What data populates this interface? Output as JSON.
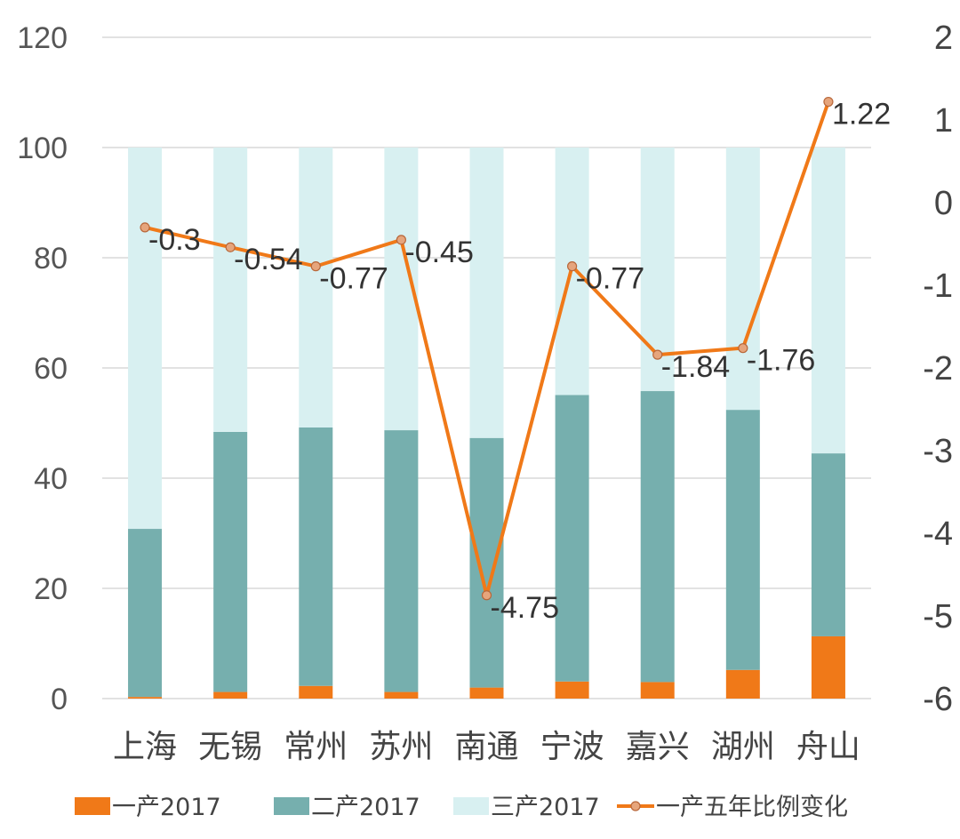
{
  "chart_data": {
    "type": "bar",
    "stacked": true,
    "categories": [
      "上海",
      "无锡",
      "常州",
      "苏州",
      "南通",
      "宁波",
      "嘉兴",
      "湖州",
      "舟山"
    ],
    "series": [
      {
        "name": "一产2017",
        "type": "bar",
        "axis": "left",
        "color": "#f07918",
        "values": [
          0.3,
          1.2,
          2.3,
          1.2,
          2.0,
          3.1,
          3.0,
          5.2,
          11.3
        ]
      },
      {
        "name": "二产2017",
        "type": "bar",
        "axis": "left",
        "color": "#76afae",
        "values": [
          30.5,
          47.2,
          46.9,
          47.5,
          45.3,
          52.0,
          52.8,
          47.2,
          33.2
        ]
      },
      {
        "name": "三产2017",
        "type": "bar",
        "axis": "left",
        "color": "#d8f0f1",
        "values": [
          69.2,
          51.6,
          50.8,
          51.3,
          52.7,
          44.9,
          44.2,
          47.6,
          55.5
        ]
      },
      {
        "name": "一产五年比例变化",
        "type": "line",
        "axis": "right",
        "color": "#f07918",
        "marker_color": "#e6a57c",
        "values": [
          -0.3,
          -0.54,
          -0.77,
          -0.45,
          -4.75,
          -0.77,
          -1.84,
          -1.76,
          1.22
        ]
      }
    ],
    "data_labels": [
      "-0.3",
      "-0.54",
      "-0.77",
      "-0.45",
      "-4.75",
      "-0.77",
      "-1.84",
      "-1.76",
      "1.22"
    ],
    "y_left": {
      "lim": [
        0,
        120
      ],
      "ticks": [
        "0",
        "20",
        "40",
        "60",
        "80",
        "100",
        "120"
      ]
    },
    "y_right": {
      "lim": [
        -6,
        2
      ],
      "ticks": [
        "-6",
        "-5",
        "-4",
        "-3",
        "-2",
        "-1",
        "0",
        "1",
        "2"
      ]
    },
    "grid": true,
    "legend_position": "bottom",
    "gridline_color": "#d9d9d9"
  }
}
